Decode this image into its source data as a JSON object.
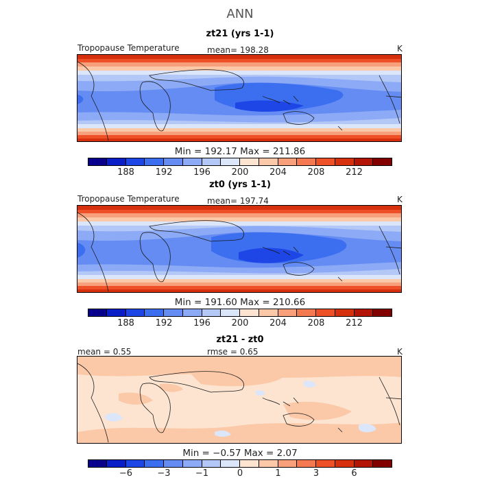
{
  "title": "ANN",
  "colors": {
    "abs_scale": [
      "#08008c",
      "#0a1ec8",
      "#1e46e6",
      "#3c6ef0",
      "#648cf2",
      "#8caaf5",
      "#b4c8f8",
      "#dce6fa",
      "#fde4d0",
      "#fbc8a8",
      "#f8a07c",
      "#f47850",
      "#ee5028",
      "#d7300f",
      "#b41405",
      "#820000"
    ],
    "diff_scale": [
      "#08008c",
      "#0a1ec8",
      "#1e46e6",
      "#3c6ef0",
      "#648cf2",
      "#8caaf5",
      "#b4c8f8",
      "#dce6fa",
      "#fde4d0",
      "#fbc8a8",
      "#f8a07c",
      "#f47850",
      "#ee5028",
      "#d7300f",
      "#b41405",
      "#820000"
    ]
  },
  "panels": [
    {
      "subtitle": "zt21 (yrs 1-1)",
      "left_label": "Tropopause Temperature",
      "center_label": "mean= 198.28",
      "unit": "K",
      "minmax": "Min = 192.17 Max = 211.86",
      "ticks": [
        "188",
        "192",
        "196",
        "200",
        "204",
        "208",
        "212"
      ]
    },
    {
      "subtitle": "zt0 (yrs 1-1)",
      "left_label": "Tropopause Temperature",
      "center_label": "mean= 197.74",
      "unit": "K",
      "minmax": "Min = 191.60 Max = 210.66",
      "ticks": [
        "188",
        "192",
        "196",
        "200",
        "204",
        "208",
        "212"
      ]
    },
    {
      "subtitle": "zt21 - zt0",
      "left_label": "mean =   0.55",
      "center_label": "rmse =   0.65",
      "unit": "K",
      "minmax": "Min =  −0.57 Max =   2.07",
      "ticks": [
        "−6",
        "−3",
        "−1",
        "0",
        "1",
        "3",
        "6"
      ]
    }
  ]
}
